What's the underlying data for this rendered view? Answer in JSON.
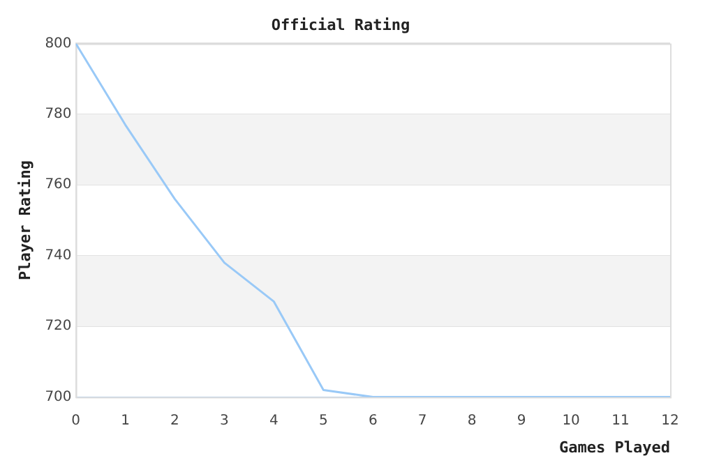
{
  "chart_data": {
    "type": "line",
    "title": "Official Rating",
    "xlabel": "Games Played",
    "ylabel": "Player Rating",
    "x": [
      0,
      1,
      2,
      3,
      4,
      5,
      6,
      7,
      8,
      9,
      10,
      11,
      12
    ],
    "series": [
      {
        "color": "#99c9f7",
        "values": [
          800,
          777,
          756,
          738,
          727,
          702,
          700,
          700,
          700,
          700,
          700,
          700,
          700
        ]
      }
    ],
    "xlim": [
      0,
      12
    ],
    "xticks": [
      0,
      1,
      2,
      3,
      4,
      5,
      6,
      7,
      8,
      9,
      10,
      11,
      12
    ],
    "ylim": [
      700,
      800
    ],
    "yticks": [
      700,
      720,
      740,
      760,
      780,
      800
    ],
    "grid": "y",
    "legend": false,
    "marker": "none",
    "line_style": "solid"
  }
}
